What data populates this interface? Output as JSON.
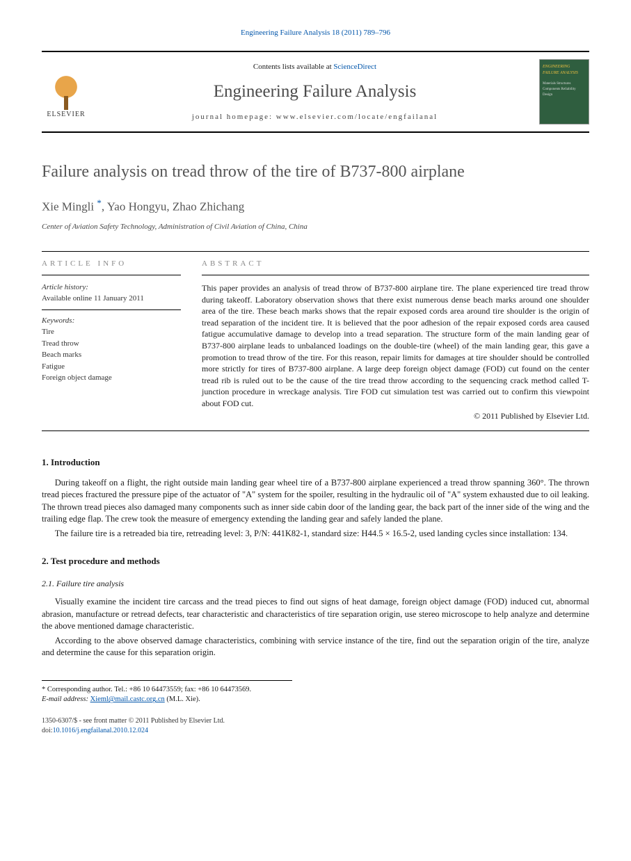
{
  "top_ref": "Engineering Failure Analysis 18 (2011) 789–796",
  "header": {
    "contents_prefix": "Contents lists available at ",
    "contents_link": "ScienceDirect",
    "journal_name": "Engineering Failure Analysis",
    "homepage_label": "journal homepage: www.elsevier.com/locate/engfailanal",
    "publisher_name": "ELSEVIER",
    "cover_title": "ENGINEERING FAILURE ANALYSIS",
    "cover_subs": "Materials\nStructures\nComponents\nReliability\nDesign"
  },
  "title": "Failure analysis on tread throw of the tire of B737-800 airplane",
  "authors_html": "Xie Mingli *, Yao Hongyu, Zhao Zhichang",
  "authors": {
    "a1": "Xie Mingli",
    "a2": "Yao Hongyu",
    "a3": "Zhao Zhichang",
    "corr_mark": "*"
  },
  "affiliation": "Center of Aviation Safety Technology, Administration of Civil Aviation of China, China",
  "info": {
    "section_label": "article info",
    "history_label": "Article history:",
    "history_value": "Available online 11 January 2011",
    "keywords_label": "Keywords:",
    "keywords": [
      "Tire",
      "Tread throw",
      "Beach marks",
      "Fatigue",
      "Foreign object damage"
    ]
  },
  "abstract": {
    "section_label": "abstract",
    "text": "This paper provides an analysis of tread throw of B737-800 airplane tire. The plane experienced tire tread throw during takeoff. Laboratory observation shows that there exist numerous dense beach marks around one shoulder area of the tire. These beach marks shows that the repair exposed cords area around tire shoulder is the origin of tread separation of the incident tire. It is believed that the poor adhesion of the repair exposed cords area caused fatigue accumulative damage to develop into a tread separation. The structure form of the main landing gear of B737-800 airplane leads to unbalanced loadings on the double-tire (wheel) of the main landing gear, this gave a promotion to tread throw of the tire. For this reason, repair limits for damages at tire shoulder should be controlled more strictly for tires of B737-800 airplane. A large deep foreign object damage (FOD) cut found on the center tread rib is ruled out to be the cause of the tire tread throw according to the sequencing crack method called T-junction procedure in wreckage analysis. Tire FOD cut simulation test was carried out to confirm this viewpoint about FOD cut.",
    "copyright": "© 2011 Published by Elsevier Ltd."
  },
  "sections": {
    "s1_title": "1. Introduction",
    "s1_p1": "During takeoff on a flight, the right outside main landing gear wheel tire of a B737-800 airplane experienced a tread throw spanning 360°. The thrown tread pieces fractured the pressure pipe of the actuator of \"A\" system for the spoiler, resulting in the hydraulic oil of \"A\" system exhausted due to oil leaking. The thrown tread pieces also damaged many components such as inner side cabin door of the landing gear, the back part of the inner side of the wing and the trailing edge flap. The crew took the measure of emergency extending the landing gear and safely landed the plane.",
    "s1_p2": "The failure tire is a retreaded bia tire, retreading level: 3, P/N: 441K82-1, standard size: H44.5 × 16.5-2, used landing cycles since installation: 134.",
    "s2_title": "2. Test procedure and methods",
    "s2_1_title": "2.1. Failure tire analysis",
    "s2_1_p1": "Visually examine the incident tire carcass and the tread pieces to find out signs of heat damage, foreign object damage (FOD) induced cut, abnormal abrasion, manufacture or retread defects, tear characteristic and characteristics of tire separation origin, use stereo microscope to help analyze and determine the above mentioned damage characteristic.",
    "s2_1_p2": "According to the above observed damage characteristics, combining with service instance of the tire, find out the separation origin of the tire, analyze and determine the cause for this separation origin."
  },
  "footnotes": {
    "corr": "* Corresponding author. Tel.: +86 10 64473559; fax: +86 10 64473569.",
    "email_label": "E-mail address:",
    "email": "Xieml@mail.castc.org.cn",
    "email_suffix": "(M.L. Xie)."
  },
  "footer": {
    "line1": "1350-6307/$ - see front matter © 2011 Published by Elsevier Ltd.",
    "doi_label": "doi:",
    "doi": "10.1016/j.engfailanal.2010.12.024"
  },
  "colors": {
    "link": "#0055aa",
    "title_gray": "#555555",
    "cover_bg": "#2f5e3f",
    "cover_accent": "#f0c040"
  }
}
